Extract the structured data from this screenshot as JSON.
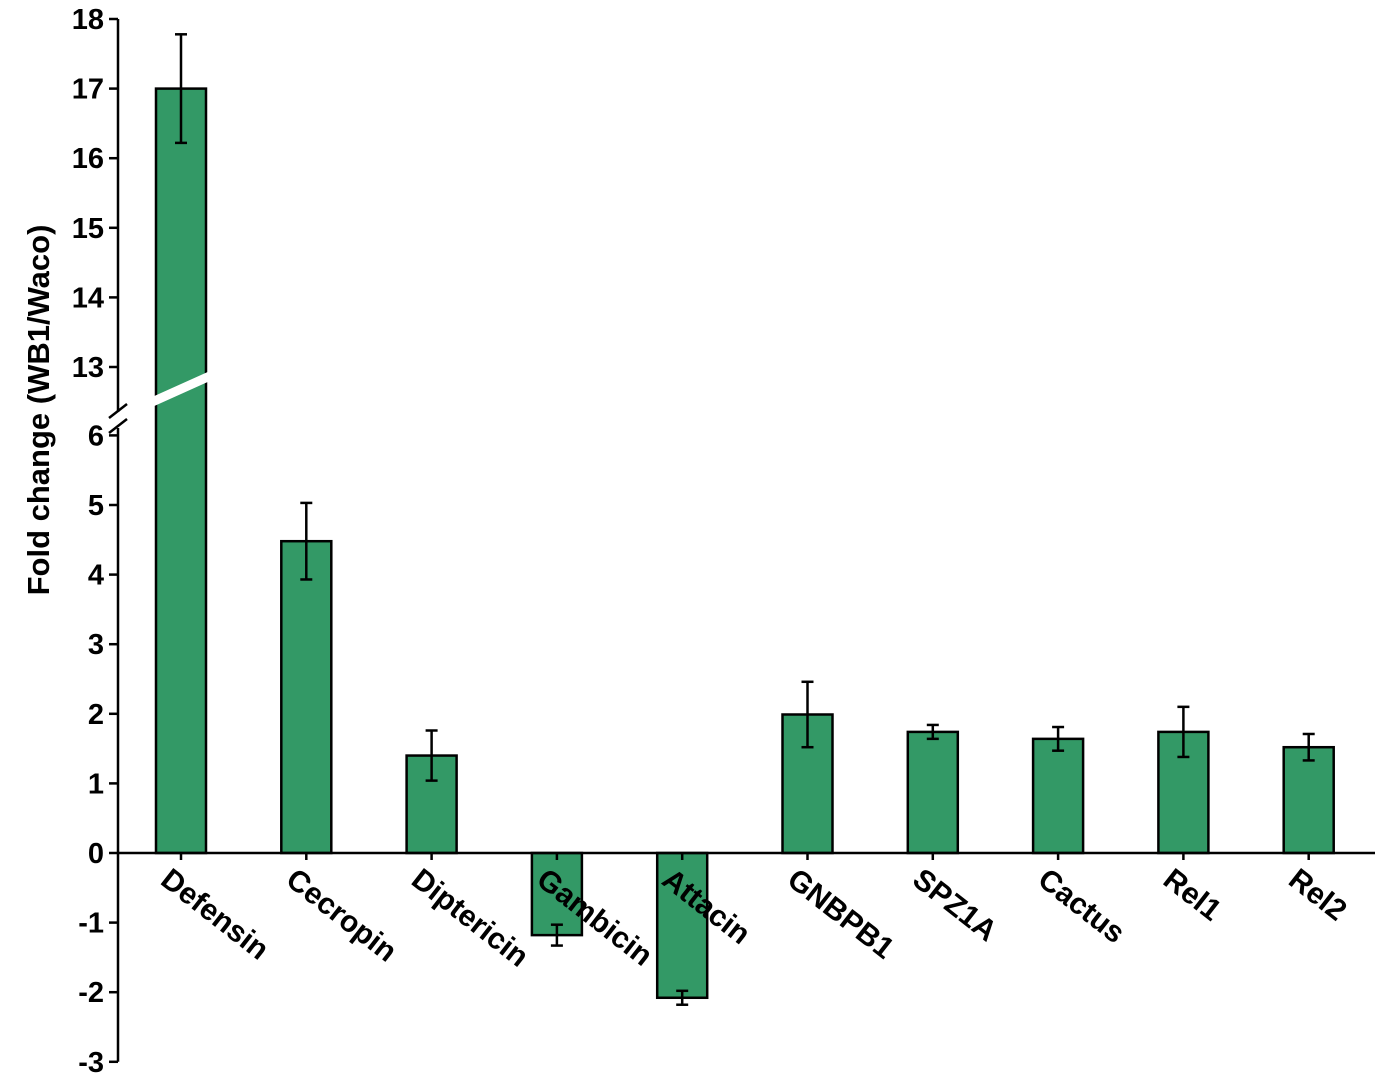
{
  "chart_data": {
    "type": "bar",
    "title": "",
    "xlabel": "",
    "ylabel": "Fold change (WB1/Waco)",
    "categories": [
      "Defensin",
      "Cecropin",
      "Diptericin",
      "Gambicin",
      "Attacin",
      "GNBPB1",
      "SPZ1A",
      "Cactus",
      "Rel1",
      "Rel2"
    ],
    "values": [
      17.0,
      4.48,
      1.4,
      -1.18,
      -2.08,
      1.99,
      1.74,
      1.64,
      1.74,
      1.52
    ],
    "error": [
      0.78,
      0.55,
      0.36,
      0.15,
      0.1,
      0.47,
      0.1,
      0.17,
      0.36,
      0.19
    ],
    "yticks": [
      "-3",
      "-2",
      "-1",
      "0",
      "1",
      "2",
      "3",
      "4",
      "5",
      "6",
      "13",
      "14",
      "15",
      "16",
      "17",
      "18"
    ],
    "ylim": [
      -3,
      18
    ],
    "axis_break": {
      "lower_max": 6,
      "upper_min": 13
    },
    "bar_color": "#339966",
    "grid": false,
    "legend": "none"
  }
}
